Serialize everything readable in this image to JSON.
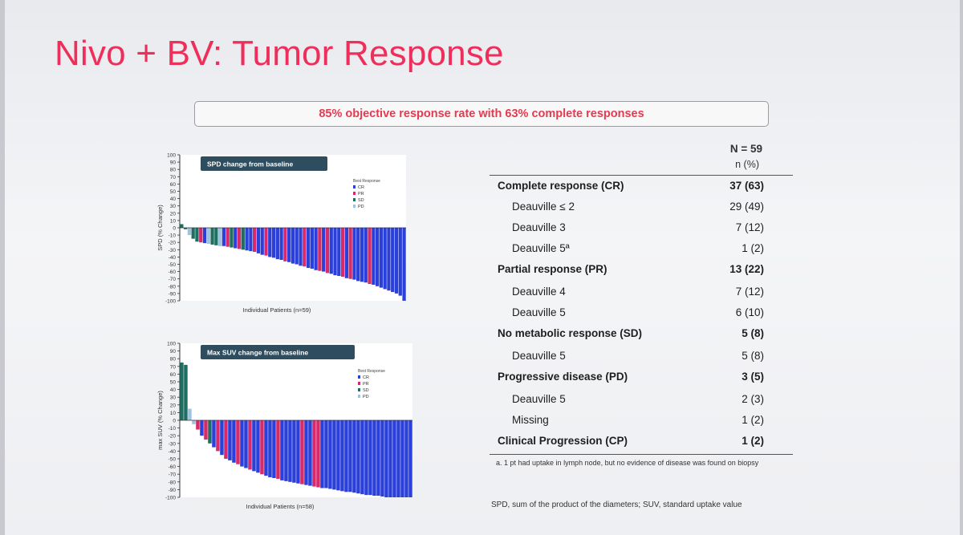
{
  "slide": {
    "title": "Nivo + BV: Tumor Response",
    "headline": "85% objective response rate with 63% complete responses"
  },
  "colors": {
    "CR": "#2b3fd9",
    "PR": "#d62a6a",
    "SD": "#1e6e62",
    "PD": "#9fc2dd",
    "panel_label_bg": "#2e4e60"
  },
  "chart_data": [
    {
      "type": "bar",
      "panel_label": "SPD change from baseline",
      "ylabel": "SPD (% Change)",
      "xlabel": "Individual Patients (n=59)",
      "ylim": [
        -100,
        100
      ],
      "yticks": [
        100,
        90,
        80,
        70,
        60,
        50,
        40,
        30,
        20,
        10,
        0,
        -10,
        -20,
        -30,
        -40,
        -50,
        -60,
        -70,
        -80,
        -90,
        -100
      ],
      "legend_title": "Best Response",
      "legend": [
        "CR",
        "PR",
        "SD",
        "PD"
      ],
      "legend_position": "top-right",
      "values": [
        5,
        -2,
        -10,
        -15,
        -19,
        -20,
        -21,
        -22,
        -23,
        -24,
        -25,
        -25,
        -26,
        -27,
        -28,
        -29,
        -30,
        -31,
        -32,
        -33,
        -35,
        -37,
        -38,
        -40,
        -41,
        -43,
        -44,
        -46,
        -47,
        -49,
        -50,
        -52,
        -53,
        -55,
        -56,
        -58,
        -59,
        -60,
        -62,
        -63,
        -65,
        -66,
        -67,
        -69,
        -70,
        -71,
        -73,
        -74,
        -75,
        -77,
        -78,
        -80,
        -82,
        -84,
        -86,
        -88,
        -90,
        -93,
        -100
      ],
      "response": [
        "SD",
        "SD",
        "PD",
        "SD",
        "SD",
        "PR",
        "CR",
        "PD",
        "SD",
        "SD",
        "PD",
        "CR",
        "PR",
        "SD",
        "CR",
        "PR",
        "SD",
        "CR",
        "CR",
        "PR",
        "CR",
        "CR",
        "PR",
        "CR",
        "CR",
        "CR",
        "CR",
        "PR",
        "CR",
        "CR",
        "CR",
        "CR",
        "PR",
        "CR",
        "CR",
        "CR",
        "PR",
        "CR",
        "PR",
        "CR",
        "CR",
        "CR",
        "PR",
        "CR",
        "PR",
        "CR",
        "CR",
        "CR",
        "CR",
        "PR",
        "CR",
        "CR",
        "CR",
        "CR",
        "CR",
        "CR",
        "CR",
        "CR",
        "CR"
      ]
    },
    {
      "type": "bar",
      "panel_label": "Max SUV change from baseline",
      "ylabel": "max SUV (% Change)",
      "xlabel": "Individual Patients (n=58)",
      "ylim": [
        -100,
        100
      ],
      "yticks": [
        100,
        90,
        80,
        70,
        60,
        50,
        40,
        30,
        20,
        10,
        0,
        -10,
        -20,
        -30,
        -40,
        -50,
        -60,
        -70,
        -80,
        -90,
        -100
      ],
      "legend_title": "Best Response",
      "legend": [
        "CR",
        "PR",
        "SD",
        "PD"
      ],
      "legend_position": "top-right",
      "values": [
        75,
        72,
        15,
        -5,
        -12,
        -20,
        -25,
        -30,
        -35,
        -40,
        -45,
        -50,
        -52,
        -55,
        -57,
        -60,
        -62,
        -64,
        -66,
        -68,
        -70,
        -72,
        -74,
        -75,
        -76,
        -78,
        -79,
        -80,
        -81,
        -82,
        -83,
        -84,
        -85,
        -86,
        -87,
        -88,
        -88,
        -89,
        -90,
        -91,
        -92,
        -93,
        -93,
        -94,
        -95,
        -96,
        -97,
        -97,
        -98,
        -98,
        -99,
        -100,
        -100,
        -100,
        -100,
        -100,
        -100,
        -100
      ],
      "response": [
        "SD",
        "SD",
        "PD",
        "PD",
        "PR",
        "CR",
        "PR",
        "SD",
        "CR",
        "PR",
        "CR",
        "PR",
        "CR",
        "CR",
        "PR",
        "CR",
        "CR",
        "PR",
        "CR",
        "CR",
        "PR",
        "CR",
        "CR",
        "CR",
        "PR",
        "CR",
        "CR",
        "CR",
        "CR",
        "CR",
        "PR",
        "CR",
        "CR",
        "PR",
        "PR",
        "CR",
        "CR",
        "CR",
        "CR",
        "CR",
        "CR",
        "CR",
        "CR",
        "CR",
        "CR",
        "CR",
        "CR",
        "CR",
        "CR",
        "CR",
        "CR",
        "CR",
        "CR",
        "CR",
        "CR",
        "CR",
        "CR",
        "CR"
      ]
    },
    {
      "type": "table",
      "header": {
        "n": "N = 59",
        "unit": "n (%)"
      },
      "rows": [
        {
          "label": "Complete response (CR)",
          "value": "37 (63)",
          "level": "main"
        },
        {
          "label": "Deauville ≤ 2",
          "value": "29 (49)",
          "level": "sub"
        },
        {
          "label": "Deauville 3",
          "value": "7 (12)",
          "level": "sub"
        },
        {
          "label": "Deauville 5ª",
          "value": "1 (2)",
          "level": "sub"
        },
        {
          "label": "Partial response (PR)",
          "value": "13 (22)",
          "level": "main"
        },
        {
          "label": "Deauville 4",
          "value": "7 (12)",
          "level": "sub"
        },
        {
          "label": "Deauville 5",
          "value": "6 (10)",
          "level": "sub"
        },
        {
          "label": "No metabolic response (SD)",
          "value": "5 (8)",
          "level": "main"
        },
        {
          "label": "Deauville 5",
          "value": "5 (8)",
          "level": "sub"
        },
        {
          "label": "Progressive disease (PD)",
          "value": "3 (5)",
          "level": "main"
        },
        {
          "label": "Deauville 5",
          "value": "2 (3)",
          "level": "sub"
        },
        {
          "label": "Missing",
          "value": "1 (2)",
          "level": "sub"
        },
        {
          "label": "Clinical Progression (CP)",
          "value": "1 (2)",
          "level": "main"
        }
      ]
    }
  ],
  "footnotes": {
    "a": "a. 1 pt had uptake in lymph node, but no evidence of disease was found on biopsy",
    "abbreviations": "SPD, sum of the product of the diameters; SUV, standard uptake value"
  }
}
